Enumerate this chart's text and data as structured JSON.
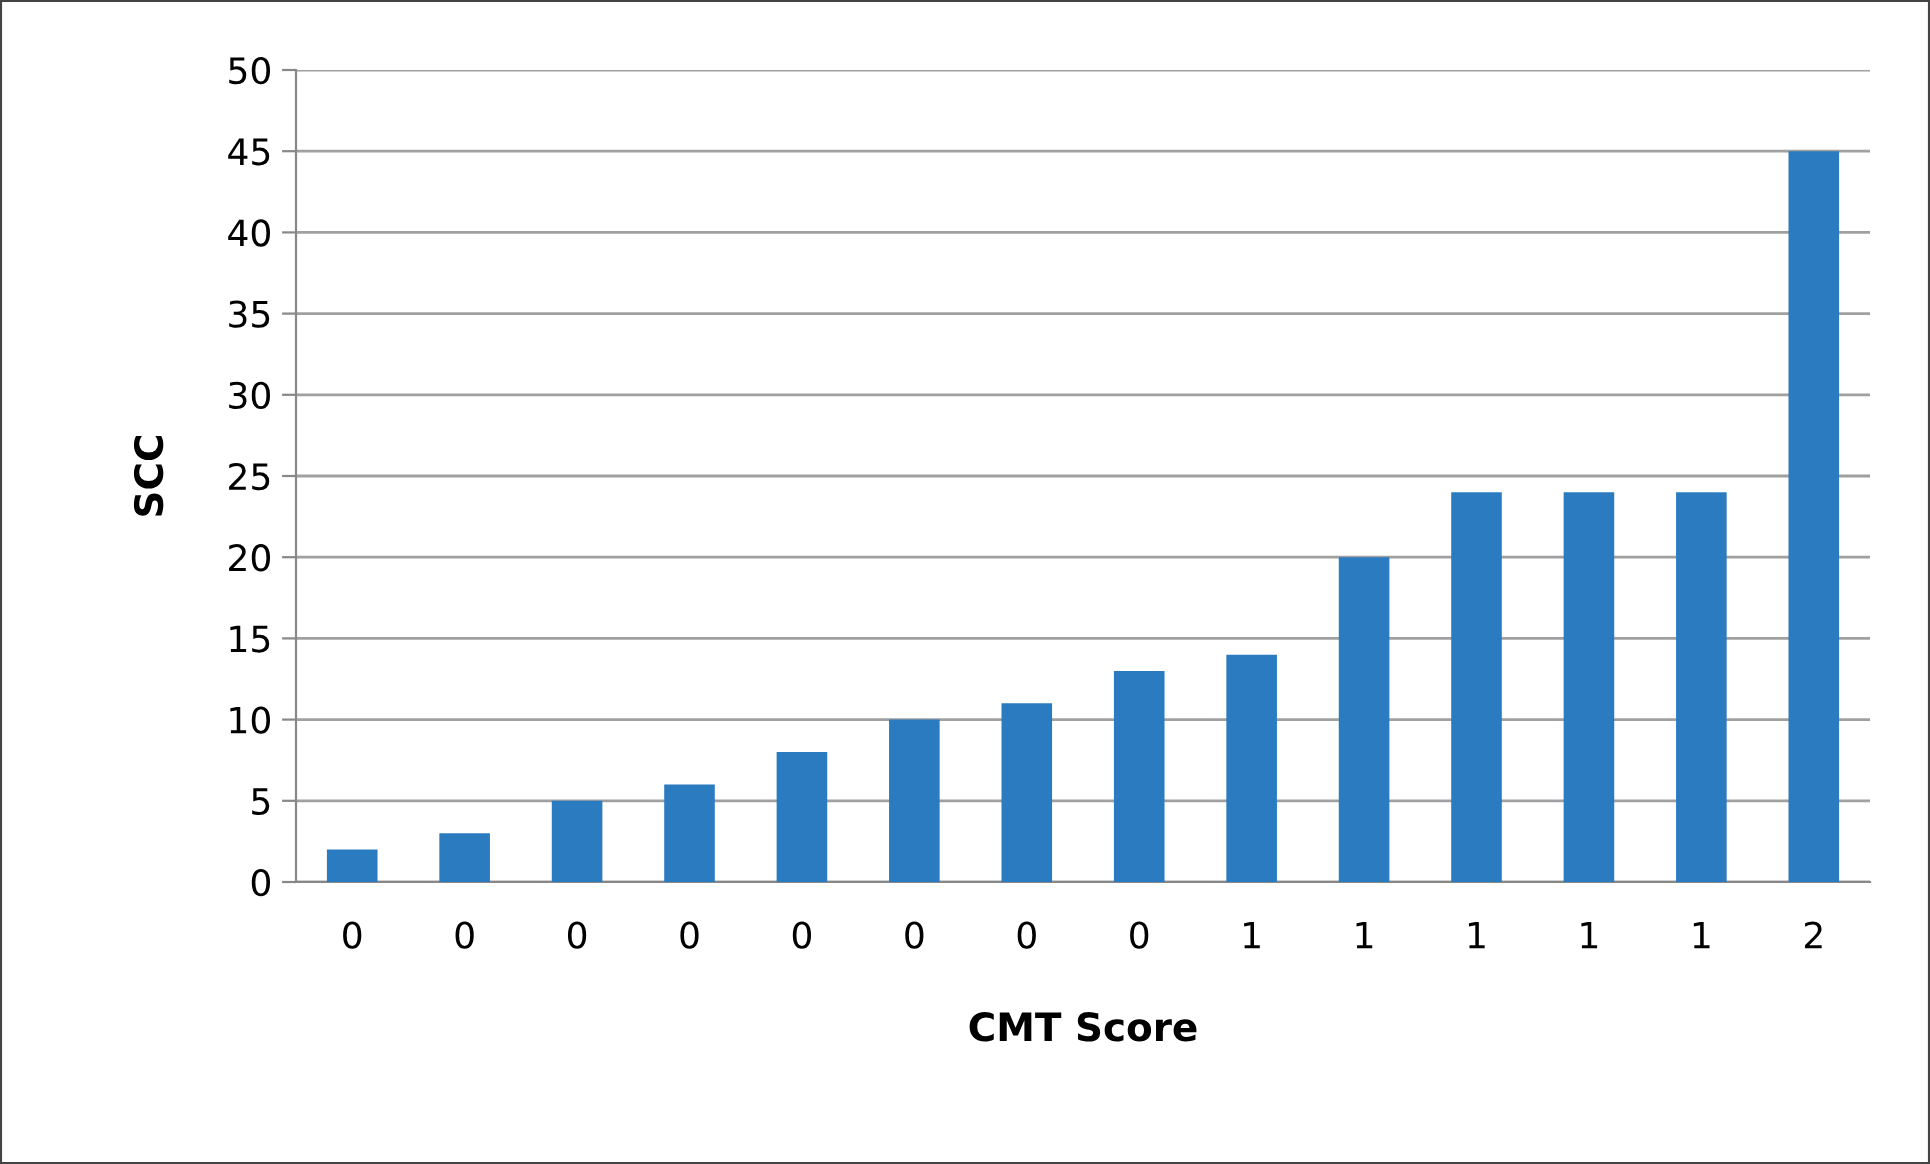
{
  "chart_data": {
    "type": "bar",
    "xlabel": "CMT Score",
    "ylabel": "SCC",
    "categories": [
      "0",
      "0",
      "0",
      "0",
      "0",
      "0",
      "0",
      "0",
      "1",
      "1",
      "1",
      "1",
      "1",
      "2"
    ],
    "values": [
      2,
      3,
      5,
      6,
      8,
      10,
      11,
      13,
      14,
      20,
      24,
      24,
      24,
      45
    ],
    "color": "#2a7bbf",
    "ylim": [
      0,
      50
    ],
    "yticks": [
      0,
      5,
      10,
      15,
      20,
      25,
      30,
      35,
      40,
      45,
      50
    ],
    "grid": "y",
    "legend": false
  }
}
